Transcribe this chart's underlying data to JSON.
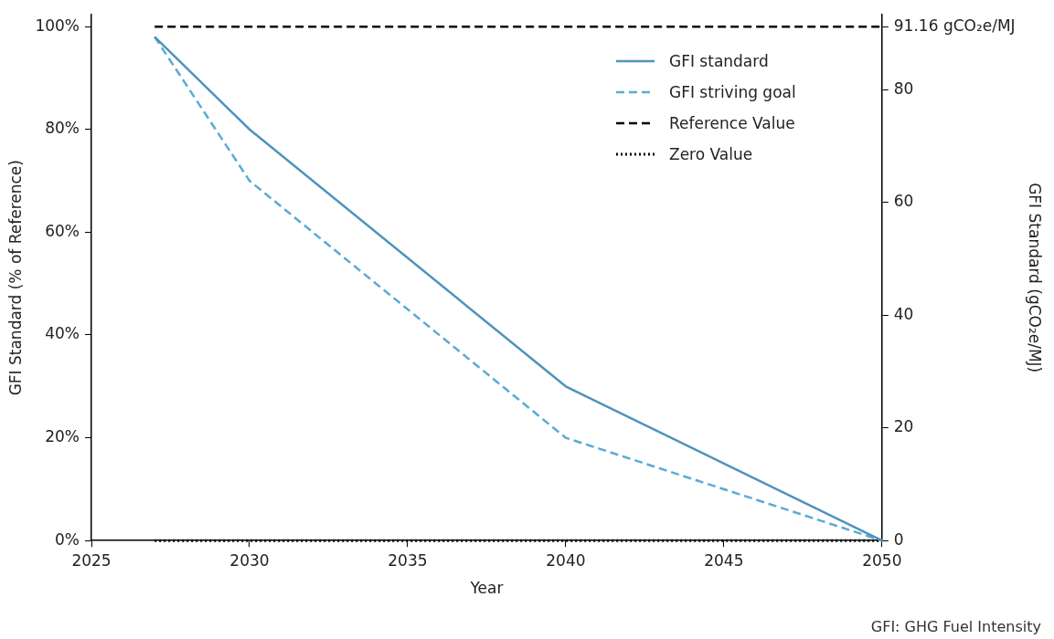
{
  "chart_data": {
    "type": "line",
    "xlabel": "Year",
    "ylabel": "GFI Standard (% of Reference)",
    "y2label": "GFI Standard (gCO₂e/MJ)",
    "xlim": [
      2025,
      2050
    ],
    "xticks": [
      2025,
      2030,
      2035,
      2040,
      2045,
      2050
    ],
    "ylim": [
      0,
      102.3
    ],
    "yticks": [
      {
        "value": 0,
        "label": "0%"
      },
      {
        "value": 20,
        "label": "20%"
      },
      {
        "value": 40,
        "label": "40%"
      },
      {
        "value": 60,
        "label": "60%"
      },
      {
        "value": 80,
        "label": "80%"
      },
      {
        "value": 100,
        "label": "100%"
      }
    ],
    "y2lim": [
      0,
      93.26
    ],
    "y2ticks": [
      0,
      20,
      40,
      60,
      80,
      {
        "value": 91.16,
        "label": "91.16 gCO₂e/MJ"
      }
    ],
    "series": [
      {
        "name": "GFI standard",
        "color": "#4f93bd",
        "line_style": "solid",
        "x": [
          2027,
          2030,
          2040,
          2050
        ],
        "values": [
          98,
          80,
          30,
          0
        ]
      },
      {
        "name": "GFI striving goal",
        "color": "#5aaad6",
        "line_style": "dashed",
        "x": [
          2027,
          2030,
          2040,
          2050
        ],
        "values": [
          98,
          70,
          20,
          0
        ]
      },
      {
        "name": "Reference Value",
        "color": "#000000",
        "line_style": "dashed",
        "x": [
          2027,
          2050
        ],
        "values": [
          100,
          100
        ]
      },
      {
        "name": "Zero Value",
        "color": "#000000",
        "line_style": "dotted",
        "x": [
          2027,
          2050
        ],
        "values": [
          0,
          0
        ]
      }
    ],
    "grid": false,
    "legend": "top right",
    "marker": "none",
    "annotations": [
      "GFI: GHG Fuel Intensity"
    ]
  }
}
